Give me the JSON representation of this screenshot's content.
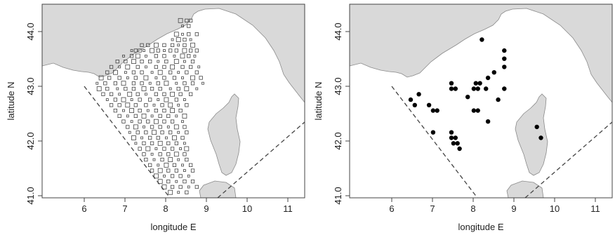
{
  "chart_data": [
    {
      "type": "scatter",
      "panel": "left",
      "xlabel": "longitude E",
      "ylabel": "latitude N",
      "xlim": [
        5.05,
        11.5
      ],
      "ylim": [
        40.95,
        44.5
      ],
      "xticks": [
        "6",
        "7",
        "8",
        "9",
        "10",
        "11"
      ],
      "yticks": [
        "41.0",
        "42.0",
        "43.0",
        "44.0"
      ],
      "marker": "open-square",
      "grid": false,
      "points": [
        [
          8.45,
          44.2
        ],
        [
          8.6,
          44.2
        ],
        [
          8.7,
          44.2
        ],
        [
          8.5,
          44.1
        ],
        [
          8.65,
          44.1
        ],
        [
          8.35,
          43.95
        ],
        [
          8.5,
          43.95
        ],
        [
          8.65,
          43.95
        ],
        [
          8.85,
          43.95
        ],
        [
          8.25,
          43.85
        ],
        [
          8.4,
          43.85
        ],
        [
          8.55,
          43.85
        ],
        [
          8.7,
          43.85
        ],
        [
          7.5,
          43.75
        ],
        [
          7.65,
          43.75
        ],
        [
          7.85,
          43.75
        ],
        [
          8.05,
          43.75
        ],
        [
          8.25,
          43.75
        ],
        [
          8.4,
          43.75
        ],
        [
          8.55,
          43.75
        ],
        [
          8.75,
          43.75
        ],
        [
          7.25,
          43.65
        ],
        [
          7.35,
          43.65
        ],
        [
          7.45,
          43.65
        ],
        [
          7.55,
          43.65
        ],
        [
          7.75,
          43.65
        ],
        [
          7.9,
          43.65
        ],
        [
          8.05,
          43.65
        ],
        [
          8.2,
          43.65
        ],
        [
          8.35,
          43.65
        ],
        [
          8.55,
          43.65
        ],
        [
          8.7,
          43.65
        ],
        [
          8.85,
          43.65
        ],
        [
          7.05,
          43.55
        ],
        [
          7.25,
          43.55
        ],
        [
          7.4,
          43.55
        ],
        [
          7.6,
          43.55
        ],
        [
          7.85,
          43.55
        ],
        [
          8.05,
          43.55
        ],
        [
          8.3,
          43.55
        ],
        [
          8.5,
          43.55
        ],
        [
          8.65,
          43.55
        ],
        [
          8.8,
          43.55
        ],
        [
          6.9,
          43.45
        ],
        [
          7.1,
          43.45
        ],
        [
          7.3,
          43.45
        ],
        [
          7.5,
          43.45
        ],
        [
          7.7,
          43.45
        ],
        [
          7.9,
          43.45
        ],
        [
          8.1,
          43.45
        ],
        [
          8.35,
          43.45
        ],
        [
          8.55,
          43.45
        ],
        [
          8.75,
          43.45
        ],
        [
          6.75,
          43.35
        ],
        [
          6.95,
          43.35
        ],
        [
          7.15,
          43.35
        ],
        [
          7.4,
          43.35
        ],
        [
          7.6,
          43.35
        ],
        [
          7.85,
          43.35
        ],
        [
          8.05,
          43.35
        ],
        [
          8.25,
          43.35
        ],
        [
          8.5,
          43.35
        ],
        [
          8.7,
          43.35
        ],
        [
          8.9,
          43.35
        ],
        [
          6.65,
          43.25
        ],
        [
          6.85,
          43.25
        ],
        [
          7.1,
          43.25
        ],
        [
          7.3,
          43.25
        ],
        [
          7.5,
          43.25
        ],
        [
          7.75,
          43.25
        ],
        [
          7.95,
          43.25
        ],
        [
          8.2,
          43.25
        ],
        [
          8.4,
          43.25
        ],
        [
          8.6,
          43.25
        ],
        [
          8.85,
          43.25
        ],
        [
          6.5,
          43.15
        ],
        [
          6.7,
          43.15
        ],
        [
          6.95,
          43.15
        ],
        [
          7.15,
          43.15
        ],
        [
          7.35,
          43.15
        ],
        [
          7.6,
          43.15
        ],
        [
          7.85,
          43.15
        ],
        [
          8.05,
          43.15
        ],
        [
          8.3,
          43.15
        ],
        [
          8.5,
          43.15
        ],
        [
          8.75,
          43.15
        ],
        [
          8.95,
          43.15
        ],
        [
          6.4,
          43.05
        ],
        [
          6.6,
          43.05
        ],
        [
          6.85,
          43.05
        ],
        [
          7.05,
          43.05
        ],
        [
          7.3,
          43.05
        ],
        [
          7.5,
          43.05
        ],
        [
          7.7,
          43.05
        ],
        [
          7.9,
          43.05
        ],
        [
          8.1,
          43.05
        ],
        [
          8.35,
          43.05
        ],
        [
          8.55,
          43.05
        ],
        [
          8.75,
          43.05
        ],
        [
          9.0,
          43.05
        ],
        [
          6.45,
          42.95
        ],
        [
          6.65,
          42.95
        ],
        [
          6.9,
          42.95
        ],
        [
          7.1,
          42.95
        ],
        [
          7.3,
          42.95
        ],
        [
          7.55,
          42.95
        ],
        [
          7.75,
          42.95
        ],
        [
          7.95,
          42.95
        ],
        [
          8.2,
          42.95
        ],
        [
          8.4,
          42.95
        ],
        [
          8.6,
          42.95
        ],
        [
          8.85,
          42.95
        ],
        [
          6.55,
          42.85
        ],
        [
          6.75,
          42.85
        ],
        [
          6.95,
          42.85
        ],
        [
          7.2,
          42.85
        ],
        [
          7.4,
          42.85
        ],
        [
          7.6,
          42.85
        ],
        [
          7.85,
          42.85
        ],
        [
          8.05,
          42.85
        ],
        [
          8.25,
          42.85
        ],
        [
          8.45,
          42.85
        ],
        [
          8.7,
          42.85
        ],
        [
          6.65,
          42.75
        ],
        [
          6.85,
          42.75
        ],
        [
          7.05,
          42.75
        ],
        [
          7.25,
          42.75
        ],
        [
          7.45,
          42.75
        ],
        [
          7.7,
          42.75
        ],
        [
          7.9,
          42.75
        ],
        [
          8.1,
          42.75
        ],
        [
          8.35,
          42.75
        ],
        [
          8.55,
          42.75
        ],
        [
          6.75,
          42.65
        ],
        [
          6.95,
          42.65
        ],
        [
          7.15,
          42.65
        ],
        [
          7.35,
          42.65
        ],
        [
          7.6,
          42.65
        ],
        [
          7.8,
          42.65
        ],
        [
          8.0,
          42.65
        ],
        [
          8.2,
          42.65
        ],
        [
          8.4,
          42.65
        ],
        [
          8.6,
          42.65
        ],
        [
          6.85,
          42.55
        ],
        [
          7.05,
          42.55
        ],
        [
          7.25,
          42.55
        ],
        [
          7.45,
          42.55
        ],
        [
          7.65,
          42.55
        ],
        [
          7.85,
          42.55
        ],
        [
          8.05,
          42.55
        ],
        [
          8.25,
          42.55
        ],
        [
          8.45,
          42.55
        ],
        [
          6.95,
          42.45
        ],
        [
          7.15,
          42.45
        ],
        [
          7.35,
          42.45
        ],
        [
          7.55,
          42.45
        ],
        [
          7.75,
          42.45
        ],
        [
          7.95,
          42.45
        ],
        [
          8.15,
          42.45
        ],
        [
          8.35,
          42.45
        ],
        [
          8.55,
          42.45
        ],
        [
          7.05,
          42.35
        ],
        [
          7.25,
          42.35
        ],
        [
          7.45,
          42.35
        ],
        [
          7.65,
          42.35
        ],
        [
          7.85,
          42.35
        ],
        [
          8.05,
          42.35
        ],
        [
          8.25,
          42.35
        ],
        [
          8.5,
          42.35
        ],
        [
          7.15,
          42.25
        ],
        [
          7.35,
          42.25
        ],
        [
          7.55,
          42.25
        ],
        [
          7.75,
          42.25
        ],
        [
          7.95,
          42.25
        ],
        [
          8.15,
          42.25
        ],
        [
          8.35,
          42.25
        ],
        [
          8.55,
          42.25
        ],
        [
          7.2,
          42.15
        ],
        [
          7.4,
          42.15
        ],
        [
          7.6,
          42.15
        ],
        [
          7.8,
          42.15
        ],
        [
          8.0,
          42.15
        ],
        [
          8.2,
          42.15
        ],
        [
          8.4,
          42.15
        ],
        [
          8.6,
          42.15
        ],
        [
          7.3,
          42.05
        ],
        [
          7.5,
          42.05
        ],
        [
          7.7,
          42.05
        ],
        [
          7.9,
          42.05
        ],
        [
          8.1,
          42.05
        ],
        [
          8.3,
          42.05
        ],
        [
          8.5,
          42.05
        ],
        [
          7.35,
          41.95
        ],
        [
          7.55,
          41.95
        ],
        [
          7.75,
          41.95
        ],
        [
          7.95,
          41.95
        ],
        [
          8.15,
          41.95
        ],
        [
          8.35,
          41.95
        ],
        [
          8.55,
          41.95
        ],
        [
          7.45,
          41.85
        ],
        [
          7.65,
          41.85
        ],
        [
          7.85,
          41.85
        ],
        [
          8.05,
          41.85
        ],
        [
          8.25,
          41.85
        ],
        [
          8.45,
          41.85
        ],
        [
          8.6,
          41.85
        ],
        [
          7.55,
          41.75
        ],
        [
          7.75,
          41.75
        ],
        [
          7.95,
          41.75
        ],
        [
          8.15,
          41.75
        ],
        [
          8.35,
          41.75
        ],
        [
          8.55,
          41.75
        ],
        [
          7.6,
          41.65
        ],
        [
          7.8,
          41.65
        ],
        [
          8.0,
          41.65
        ],
        [
          8.2,
          41.65
        ],
        [
          8.4,
          41.65
        ],
        [
          8.6,
          41.65
        ],
        [
          7.7,
          41.55
        ],
        [
          7.9,
          41.55
        ],
        [
          8.1,
          41.55
        ],
        [
          8.3,
          41.55
        ],
        [
          8.5,
          41.55
        ],
        [
          8.7,
          41.55
        ],
        [
          7.75,
          41.45
        ],
        [
          7.95,
          41.45
        ],
        [
          8.15,
          41.45
        ],
        [
          8.35,
          41.45
        ],
        [
          8.55,
          41.45
        ],
        [
          8.75,
          41.45
        ],
        [
          7.85,
          41.35
        ],
        [
          8.05,
          41.35
        ],
        [
          8.25,
          41.35
        ],
        [
          8.45,
          41.35
        ],
        [
          8.65,
          41.35
        ],
        [
          7.95,
          41.25
        ],
        [
          8.15,
          41.25
        ],
        [
          8.35,
          41.25
        ],
        [
          8.55,
          41.25
        ],
        [
          8.75,
          41.25
        ],
        [
          8.05,
          41.15
        ],
        [
          8.25,
          41.15
        ],
        [
          8.45,
          41.15
        ],
        [
          8.65,
          41.15
        ],
        [
          8.85,
          41.15
        ],
        [
          8.2,
          41.05
        ],
        [
          8.4,
          41.05
        ],
        [
          8.6,
          41.05
        ]
      ]
    },
    {
      "type": "scatter",
      "panel": "right",
      "xlabel": "longitude E",
      "ylabel": "latitude N",
      "xlim": [
        5.05,
        11.5
      ],
      "ylim": [
        40.95,
        44.5
      ],
      "xticks": [
        "6",
        "7",
        "8",
        "9",
        "10",
        "11"
      ],
      "yticks": [
        "41.0",
        "42.0",
        "43.0",
        "44.0"
      ],
      "marker": "filled-circle",
      "grid": false,
      "points": [
        [
          8.3,
          43.85
        ],
        [
          8.85,
          43.65
        ],
        [
          8.85,
          43.5
        ],
        [
          8.85,
          43.35
        ],
        [
          8.6,
          43.25
        ],
        [
          8.45,
          43.15
        ],
        [
          7.55,
          43.05
        ],
        [
          7.55,
          42.95
        ],
        [
          7.65,
          42.95
        ],
        [
          8.15,
          43.05
        ],
        [
          8.25,
          43.05
        ],
        [
          8.1,
          42.95
        ],
        [
          8.2,
          42.95
        ],
        [
          8.4,
          42.95
        ],
        [
          8.85,
          42.95
        ],
        [
          6.75,
          42.85
        ],
        [
          6.55,
          42.75
        ],
        [
          7.95,
          42.8
        ],
        [
          8.7,
          42.75
        ],
        [
          6.65,
          42.65
        ],
        [
          7.0,
          42.65
        ],
        [
          7.1,
          42.55
        ],
        [
          7.2,
          42.55
        ],
        [
          8.1,
          42.55
        ],
        [
          8.2,
          42.55
        ],
        [
          8.45,
          42.35
        ],
        [
          7.1,
          42.15
        ],
        [
          7.55,
          42.15
        ],
        [
          7.55,
          42.05
        ],
        [
          7.65,
          42.05
        ],
        [
          7.6,
          41.95
        ],
        [
          7.7,
          41.95
        ],
        [
          7.75,
          41.85
        ],
        [
          9.65,
          42.25
        ],
        [
          9.75,
          42.05
        ]
      ]
    }
  ]
}
